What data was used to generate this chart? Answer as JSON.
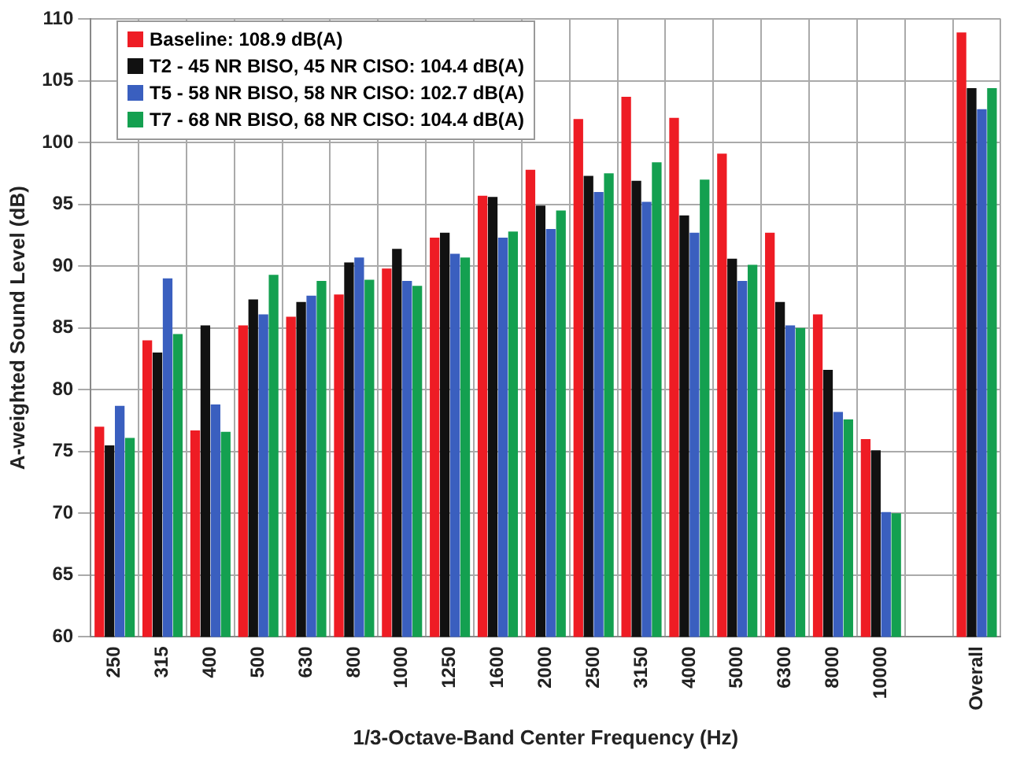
{
  "chart_data": {
    "type": "bar",
    "xlabel": "1/3-Octave-Band Center Frequency (Hz)",
    "ylabel": "A-weighted Sound Level (dB)",
    "categories": [
      "250",
      "315",
      "400",
      "500",
      "630",
      "800",
      "1000",
      "1250",
      "1600",
      "2000",
      "2500",
      "3150",
      "4000",
      "5000",
      "6300",
      "8000",
      "10000",
      null,
      "Overall"
    ],
    "series": [
      {
        "name": "Baseline: 108.9 dB(A)",
        "color": "#ee1c24",
        "values": [
          77,
          84,
          76.7,
          85.2,
          85.9,
          87.7,
          89.8,
          92.3,
          95.7,
          97.8,
          101.9,
          103.7,
          102,
          99.1,
          92.7,
          86.1,
          76,
          null,
          108.9
        ]
      },
      {
        "name": "T2 - 45 NR BISO, 45 NR CISO: 104.4 dB(A)",
        "color": "#111111",
        "values": [
          75.5,
          83,
          85.2,
          87.3,
          87.1,
          90.3,
          91.4,
          92.7,
          95.6,
          94.9,
          97.3,
          96.9,
          94.1,
          90.6,
          87.1,
          81.6,
          75.1,
          null,
          104.4
        ]
      },
      {
        "name": "T5 - 58 NR BISO, 58 NR CISO: 102.7 dB(A)",
        "color": "#3a5fbf",
        "values": [
          78.7,
          89,
          78.8,
          86.1,
          87.6,
          90.7,
          88.8,
          91,
          92.3,
          93,
          96,
          95.2,
          92.7,
          88.8,
          85.2,
          78.2,
          70.1,
          null,
          102.7
        ]
      },
      {
        "name": "T7 - 68 NR BISO, 68 NR CISO: 104.4 dB(A)",
        "color": "#14a050",
        "values": [
          76.1,
          84.5,
          76.6,
          89.3,
          88.8,
          88.9,
          88.4,
          90.7,
          92.8,
          94.5,
          97.5,
          98.4,
          97,
          90.1,
          85,
          77.6,
          70,
          null,
          104.4
        ]
      }
    ],
    "ylim": [
      60,
      110
    ],
    "yticks": [
      60,
      65,
      70,
      75,
      80,
      85,
      90,
      95,
      100,
      105,
      110
    ],
    "grid": true,
    "legend": "top left"
  }
}
